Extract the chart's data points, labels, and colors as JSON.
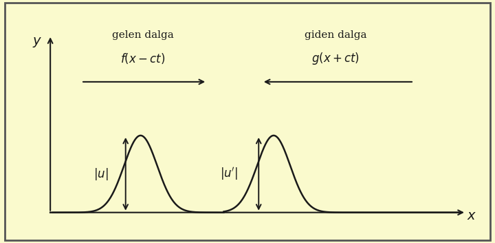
{
  "background_color": "#fafacd",
  "border_color": "#555555",
  "text_color": "#1a1a1a",
  "wave_color": "#1a1a1a",
  "axis_color": "#1a1a1a",
  "arrow_color": "#1a1a1a",
  "label_gelen": "gelen dalga",
  "label_giden": "giden dalga",
  "formula_gelen": "$f(x - ct)$",
  "formula_giden": "$g(x + ct)$",
  "label_u": "$|u|$",
  "label_uprime": "$|u'|$",
  "label_x": "$x$",
  "label_y": "$y$",
  "figsize": [
    7.2,
    3.53
  ],
  "dpi": 100,
  "xlim": [
    0,
    10
  ],
  "ylim": [
    0,
    5
  ],
  "ox": 0.85,
  "oy": 0.55,
  "wave_base": 0.55,
  "amp": 1.65
}
